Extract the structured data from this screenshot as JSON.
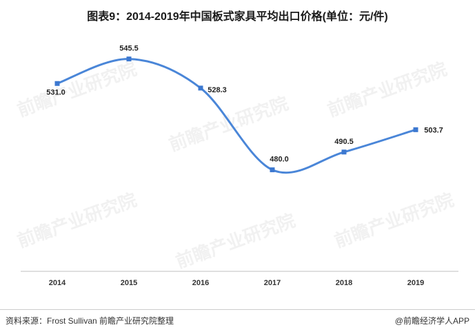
{
  "title": "图表9：2014-2019年中国板式家具平均出口价格(单位：元/件)",
  "source": "资料来源：Frost Sullivan 前瞻产业研究院整理",
  "brand": "@前瞻经济学人APP",
  "watermark": "前瞻产业研究院",
  "colors": {
    "line": "#4a86d8",
    "marker": "#3c78d0",
    "axis": "#bfbfbf"
  },
  "chart_data": {
    "type": "line",
    "categories": [
      "2014",
      "2015",
      "2016",
      "2017",
      "2018",
      "2019"
    ],
    "series": [
      {
        "values": [
          531.0,
          545.5,
          528.3,
          480.0,
          490.5,
          503.7
        ]
      }
    ],
    "data_labels": [
      "531.0",
      "545.5",
      "528.3",
      "480.0",
      "490.5",
      "503.7"
    ],
    "title": "图表9：2014-2019年中国板式家具平均出口价格(单位：元/件)",
    "xlabel": "",
    "ylabel": "",
    "ylim": [
      420,
      560
    ],
    "grid": false,
    "legend": "none",
    "smooth": true
  }
}
